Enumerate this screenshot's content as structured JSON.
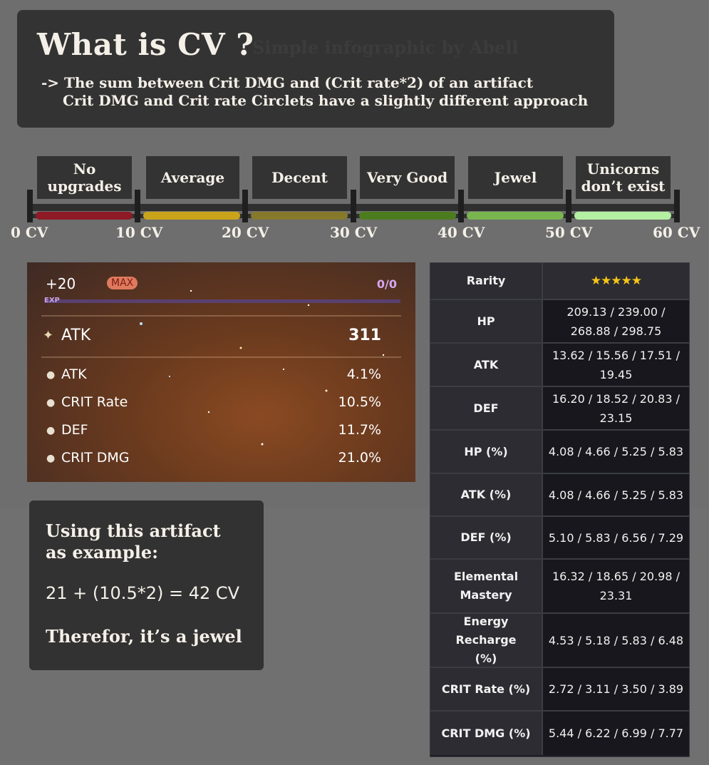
{
  "header": {
    "title": "What is CV ?",
    "watermark": "Simple infographic by Abell",
    "line1": "-> The sum between Crit DMG and (Crit rate*2) of an artifact",
    "line2": "Crit DMG and Crit rate Circlets have a slightly different approach"
  },
  "scale": {
    "tiers": [
      "No upgrades",
      "Average",
      "Decent",
      "Very Good",
      "Jewel",
      "Unicorns don’t exist"
    ],
    "labels": [
      "0 CV",
      "10 CV",
      "20 CV",
      "30 CV",
      "40 CV",
      "50 CV",
      "60 CV"
    ],
    "colors": [
      "#8e1a26",
      "#c9a41a",
      "#86792c",
      "#4b7d1e",
      "#78b54e",
      "#b4f0a2"
    ]
  },
  "artifact": {
    "level": "+20",
    "max_badge": "MAX",
    "exp_count": "0/0",
    "exp_label": "EXP",
    "main_stat": {
      "name": "ATK",
      "value": "311"
    },
    "substats": [
      {
        "name": "ATK",
        "value": "4.1%"
      },
      {
        "name": "CRIT Rate",
        "value": "10.5%"
      },
      {
        "name": "DEF",
        "value": "11.7%"
      },
      {
        "name": "CRIT DMG",
        "value": "21.0%"
      }
    ]
  },
  "example": {
    "line1": "Using this artifact",
    "line2": "as example:",
    "formula": "21 + (10.5*2) = 42 CV",
    "conclusion": "Therefor, it’s a jewel"
  },
  "table": {
    "rarity_label": "Rarity",
    "rarity_stars": "★★★★★",
    "rows": [
      {
        "stat": "HP",
        "values": "209.13 / 239.00 / 268.88 / 298.75"
      },
      {
        "stat": "ATK",
        "values": "13.62 / 15.56 / 17.51 / 19.45"
      },
      {
        "stat": "DEF",
        "values": "16.20 / 18.52 / 20.83 / 23.15"
      },
      {
        "stat": "HP (%)",
        "values": "4.08 / 4.66 / 5.25 / 5.83"
      },
      {
        "stat": "ATK (%)",
        "values": "4.08 / 4.66 / 5.25 / 5.83"
      },
      {
        "stat": "DEF (%)",
        "values": "5.10 / 5.83 / 6.56 / 7.29"
      },
      {
        "stat": "Elemental Mastery",
        "values": "16.32 / 18.65 / 20.98 / 23.31"
      },
      {
        "stat": "Energy Recharge (%)",
        "values": "4.53 / 5.18 / 5.83 / 6.48"
      },
      {
        "stat": "CRIT Rate (%)",
        "values": "2.72 / 3.11 / 3.50 / 3.89"
      },
      {
        "stat": "CRIT DMG (%)",
        "values": "5.44 / 6.22 / 6.99 / 7.77"
      }
    ]
  }
}
